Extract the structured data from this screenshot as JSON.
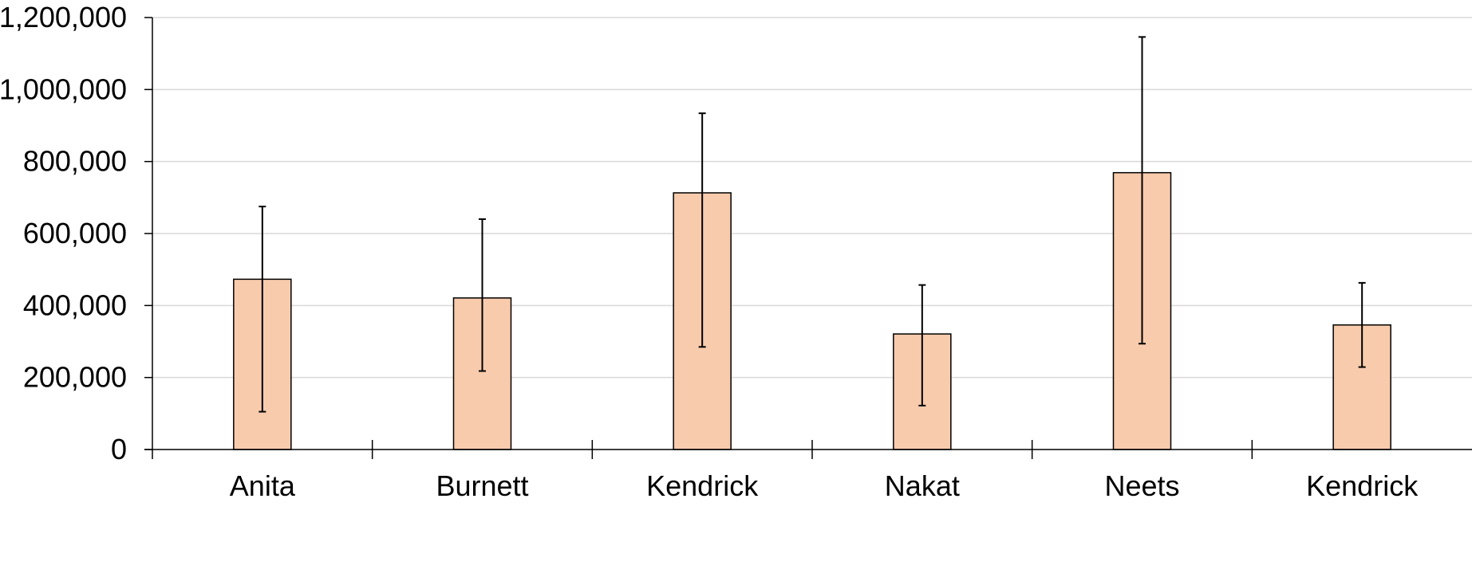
{
  "chart_data": {
    "type": "bar",
    "categories": [
      "Anita",
      "Burnett",
      "Kendrick",
      "Nakat",
      "Neets",
      "Kendrick"
    ],
    "series": [
      {
        "values": [
          473000,
          421000,
          713000,
          321000,
          769000,
          346000
        ],
        "error_low": [
          105000,
          218000,
          285000,
          122000,
          294000,
          229000
        ],
        "error_high": [
          675000,
          640000,
          934000,
          457000,
          1146000,
          463000
        ]
      }
    ],
    "ylim": [
      0,
      1200000
    ],
    "yticks": [
      0,
      200000,
      400000,
      600000,
      800000,
      1000000,
      1200000
    ],
    "ytick_labels": [
      "0",
      "200,000",
      "400,000",
      "600,000",
      "800,000",
      "1,000,000",
      "1,200,000"
    ],
    "grid": true,
    "legend": "none",
    "colors": {
      "bar_fill": "#F8CBAD",
      "bar_stroke": "#000000",
      "error_bar": "#000000",
      "grid": "#D9D9D9",
      "axis": "#000000"
    }
  }
}
